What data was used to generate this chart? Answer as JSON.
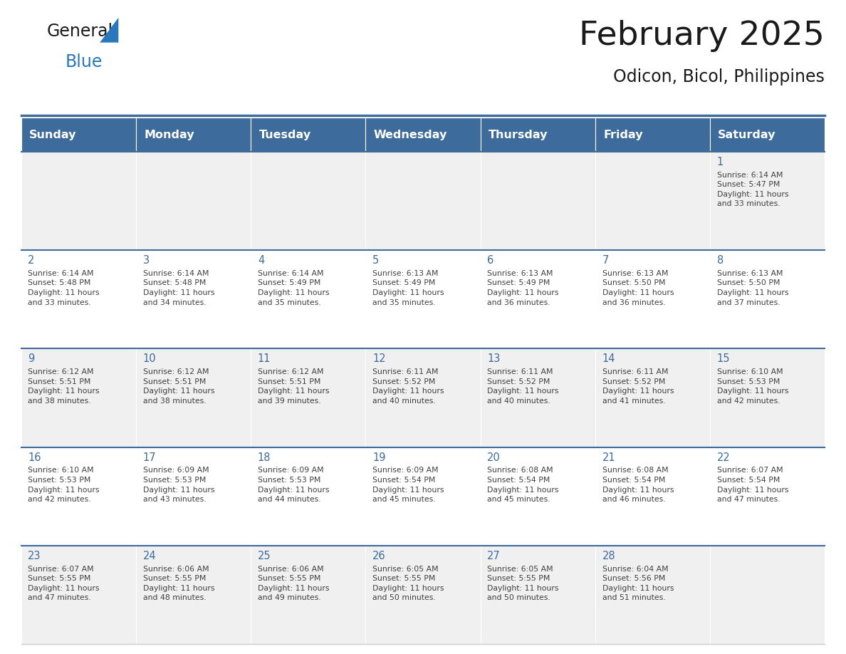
{
  "title": "February 2025",
  "subtitle": "Odicon, Bicol, Philippines",
  "days_of_week": [
    "Sunday",
    "Monday",
    "Tuesday",
    "Wednesday",
    "Thursday",
    "Friday",
    "Saturday"
  ],
  "header_bg": "#3D6B9C",
  "header_text_color": "#FFFFFF",
  "row_bg_even": "#F0F0F0",
  "row_bg_odd": "#FFFFFF",
  "border_color": "#3D6B9C",
  "cell_border_color": "#CCCCCC",
  "day_number_color": "#3D6B9C",
  "text_color": "#404040",
  "title_color": "#1A1A1A",
  "subtitle_color": "#1A1A1A",
  "calendar_data": [
    [
      {
        "day": null,
        "info": ""
      },
      {
        "day": null,
        "info": ""
      },
      {
        "day": null,
        "info": ""
      },
      {
        "day": null,
        "info": ""
      },
      {
        "day": null,
        "info": ""
      },
      {
        "day": null,
        "info": ""
      },
      {
        "day": 1,
        "info": "Sunrise: 6:14 AM\nSunset: 5:47 PM\nDaylight: 11 hours\nand 33 minutes."
      }
    ],
    [
      {
        "day": 2,
        "info": "Sunrise: 6:14 AM\nSunset: 5:48 PM\nDaylight: 11 hours\nand 33 minutes."
      },
      {
        "day": 3,
        "info": "Sunrise: 6:14 AM\nSunset: 5:48 PM\nDaylight: 11 hours\nand 34 minutes."
      },
      {
        "day": 4,
        "info": "Sunrise: 6:14 AM\nSunset: 5:49 PM\nDaylight: 11 hours\nand 35 minutes."
      },
      {
        "day": 5,
        "info": "Sunrise: 6:13 AM\nSunset: 5:49 PM\nDaylight: 11 hours\nand 35 minutes."
      },
      {
        "day": 6,
        "info": "Sunrise: 6:13 AM\nSunset: 5:49 PM\nDaylight: 11 hours\nand 36 minutes."
      },
      {
        "day": 7,
        "info": "Sunrise: 6:13 AM\nSunset: 5:50 PM\nDaylight: 11 hours\nand 36 minutes."
      },
      {
        "day": 8,
        "info": "Sunrise: 6:13 AM\nSunset: 5:50 PM\nDaylight: 11 hours\nand 37 minutes."
      }
    ],
    [
      {
        "day": 9,
        "info": "Sunrise: 6:12 AM\nSunset: 5:51 PM\nDaylight: 11 hours\nand 38 minutes."
      },
      {
        "day": 10,
        "info": "Sunrise: 6:12 AM\nSunset: 5:51 PM\nDaylight: 11 hours\nand 38 minutes."
      },
      {
        "day": 11,
        "info": "Sunrise: 6:12 AM\nSunset: 5:51 PM\nDaylight: 11 hours\nand 39 minutes."
      },
      {
        "day": 12,
        "info": "Sunrise: 6:11 AM\nSunset: 5:52 PM\nDaylight: 11 hours\nand 40 minutes."
      },
      {
        "day": 13,
        "info": "Sunrise: 6:11 AM\nSunset: 5:52 PM\nDaylight: 11 hours\nand 40 minutes."
      },
      {
        "day": 14,
        "info": "Sunrise: 6:11 AM\nSunset: 5:52 PM\nDaylight: 11 hours\nand 41 minutes."
      },
      {
        "day": 15,
        "info": "Sunrise: 6:10 AM\nSunset: 5:53 PM\nDaylight: 11 hours\nand 42 minutes."
      }
    ],
    [
      {
        "day": 16,
        "info": "Sunrise: 6:10 AM\nSunset: 5:53 PM\nDaylight: 11 hours\nand 42 minutes."
      },
      {
        "day": 17,
        "info": "Sunrise: 6:09 AM\nSunset: 5:53 PM\nDaylight: 11 hours\nand 43 minutes."
      },
      {
        "day": 18,
        "info": "Sunrise: 6:09 AM\nSunset: 5:53 PM\nDaylight: 11 hours\nand 44 minutes."
      },
      {
        "day": 19,
        "info": "Sunrise: 6:09 AM\nSunset: 5:54 PM\nDaylight: 11 hours\nand 45 minutes."
      },
      {
        "day": 20,
        "info": "Sunrise: 6:08 AM\nSunset: 5:54 PM\nDaylight: 11 hours\nand 45 minutes."
      },
      {
        "day": 21,
        "info": "Sunrise: 6:08 AM\nSunset: 5:54 PM\nDaylight: 11 hours\nand 46 minutes."
      },
      {
        "day": 22,
        "info": "Sunrise: 6:07 AM\nSunset: 5:54 PM\nDaylight: 11 hours\nand 47 minutes."
      }
    ],
    [
      {
        "day": 23,
        "info": "Sunrise: 6:07 AM\nSunset: 5:55 PM\nDaylight: 11 hours\nand 47 minutes."
      },
      {
        "day": 24,
        "info": "Sunrise: 6:06 AM\nSunset: 5:55 PM\nDaylight: 11 hours\nand 48 minutes."
      },
      {
        "day": 25,
        "info": "Sunrise: 6:06 AM\nSunset: 5:55 PM\nDaylight: 11 hours\nand 49 minutes."
      },
      {
        "day": 26,
        "info": "Sunrise: 6:05 AM\nSunset: 5:55 PM\nDaylight: 11 hours\nand 50 minutes."
      },
      {
        "day": 27,
        "info": "Sunrise: 6:05 AM\nSunset: 5:55 PM\nDaylight: 11 hours\nand 50 minutes."
      },
      {
        "day": 28,
        "info": "Sunrise: 6:04 AM\nSunset: 5:56 PM\nDaylight: 11 hours\nand 51 minutes."
      },
      {
        "day": null,
        "info": ""
      }
    ]
  ],
  "logo_general_color": "#1A1A1A",
  "logo_blue_color": "#2878BE",
  "logo_triangle_color": "#2878BE",
  "fig_width": 11.88,
  "fig_height": 9.18,
  "dpi": 100
}
